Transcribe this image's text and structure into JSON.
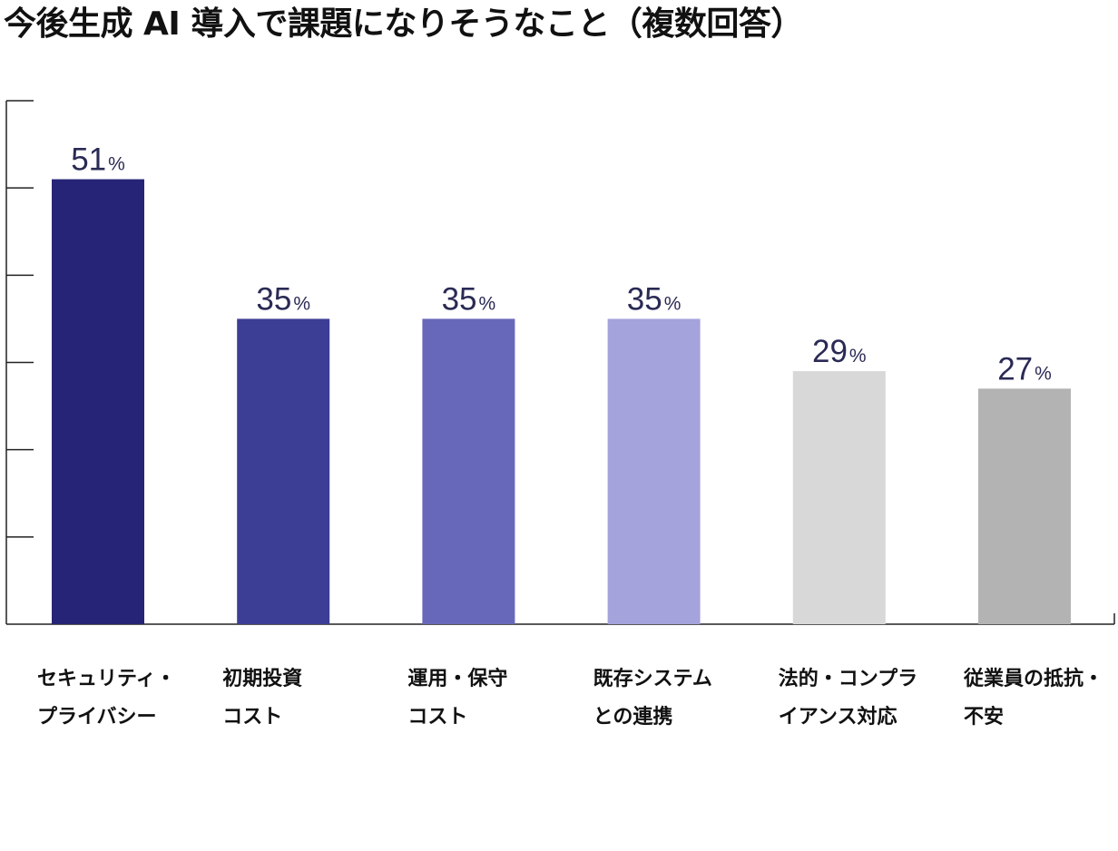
{
  "chart_data": {
    "type": "bar",
    "title": "今後生成 AI 導入で課題になりそうなこと（複数回答）",
    "categories": [
      "セキュリティ・\nプライバシー",
      "初期投資\nコスト",
      "運用・保守\nコスト",
      "既存システム\nとの連携",
      "法的・コンプラ\nイアンス対応",
      "従業員の抵抗・\n不安"
    ],
    "values": [
      51,
      35,
      35,
      35,
      29,
      27
    ],
    "value_suffix": "%",
    "colors": [
      "#262476",
      "#3c3d95",
      "#6868ba",
      "#a4a3dc",
      "#d8d8d8",
      "#b3b3b3"
    ],
    "value_label_color": "#2a2a55",
    "ylim": [
      0,
      60
    ],
    "y_ticks": [
      0,
      10,
      20,
      30,
      40,
      50,
      60
    ],
    "grid": false,
    "legend": "none"
  }
}
